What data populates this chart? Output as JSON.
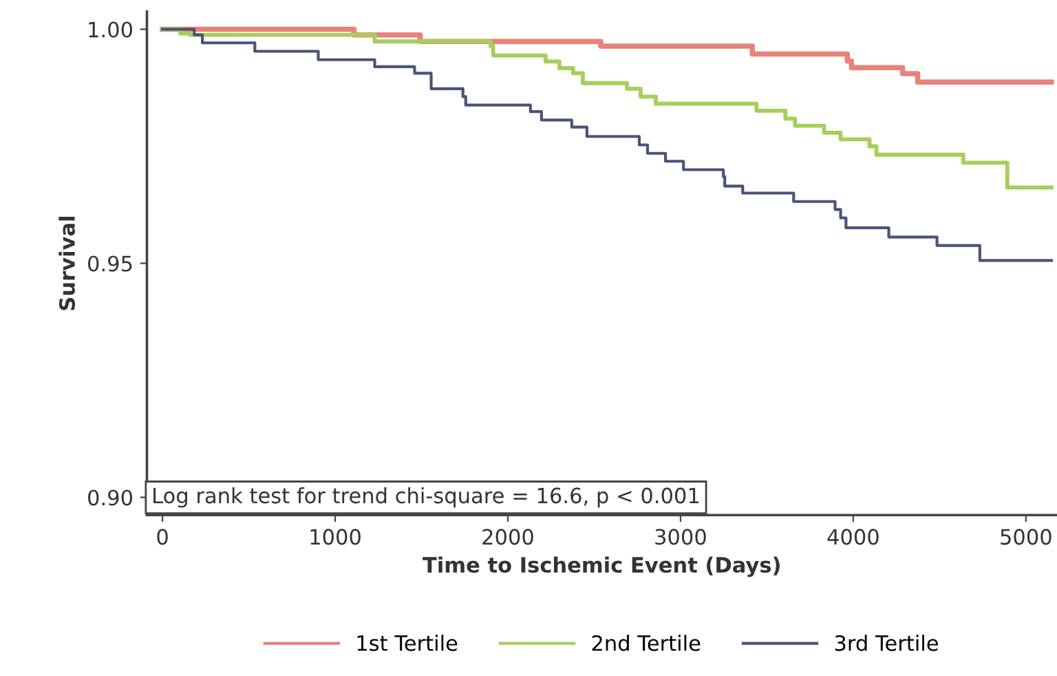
{
  "chart_data": {
    "type": "step",
    "xlabel": "Time to Ischemic Event (Days)",
    "ylabel": "Survival",
    "xlim": [
      -90,
      5180
    ],
    "ylim": [
      0.8962,
      1.0038
    ],
    "xticks": [
      0,
      1000,
      2000,
      3000,
      4000,
      5000
    ],
    "yticks": [
      {
        "value": 0.9,
        "label": "0.90"
      },
      {
        "value": 0.95,
        "label": "0.95"
      },
      {
        "value": 1.0,
        "label": "1.00"
      }
    ],
    "grid": false,
    "legend": "bottom",
    "line_style": "solid",
    "marker": "none",
    "annotations": [
      "Log rank test for trend chi-square = 16.6, p < 0.001"
    ],
    "series": [
      {
        "name": "1st Tertile",
        "color": "#e8827a",
        "x": [
          0,
          1109,
          1492,
          2538,
          3416,
          3966,
          3990,
          4286,
          4373,
          5148
        ],
        "values": [
          1.0,
          0.9988,
          0.9974,
          0.9964,
          0.9947,
          0.9932,
          0.9918,
          0.9905,
          0.9887,
          0.9887
        ]
      },
      {
        "name": "2nd Tertile",
        "color": "#a6cf5a",
        "x": [
          0,
          104,
          160,
          1229,
          1900,
          1915,
          2219,
          2298,
          2378,
          2434,
          2690,
          2769,
          2857,
          3440,
          3607,
          3663,
          3831,
          3927,
          4094,
          4134,
          4637,
          4892,
          5148
        ],
        "values": [
          1.0,
          0.9991,
          0.9988,
          0.9974,
          0.9964,
          0.9944,
          0.9931,
          0.9917,
          0.9906,
          0.9885,
          0.9873,
          0.9856,
          0.9841,
          0.9826,
          0.9809,
          0.9794,
          0.9779,
          0.9765,
          0.975,
          0.9732,
          0.9715,
          0.9662,
          0.9662
        ]
      },
      {
        "name": "3rd Tertile",
        "color": "#4a5478",
        "x": [
          0,
          184,
          231,
          535,
          902,
          1229,
          1460,
          1556,
          1740,
          1756,
          2131,
          2195,
          2370,
          2458,
          2761,
          2809,
          2913,
          3017,
          3248,
          3256,
          3360,
          3655,
          3895,
          3927,
          3958,
          4206,
          4485,
          4733,
          5148
        ],
        "values": [
          1.0,
          0.9988,
          0.9971,
          0.9953,
          0.9935,
          0.992,
          0.9906,
          0.9873,
          0.9856,
          0.9838,
          0.9824,
          0.9806,
          0.9791,
          0.9771,
          0.9753,
          0.9735,
          0.9718,
          0.97,
          0.9685,
          0.9665,
          0.965,
          0.9632,
          0.9615,
          0.9597,
          0.9576,
          0.9556,
          0.9538,
          0.9506,
          0.9506
        ]
      }
    ]
  }
}
